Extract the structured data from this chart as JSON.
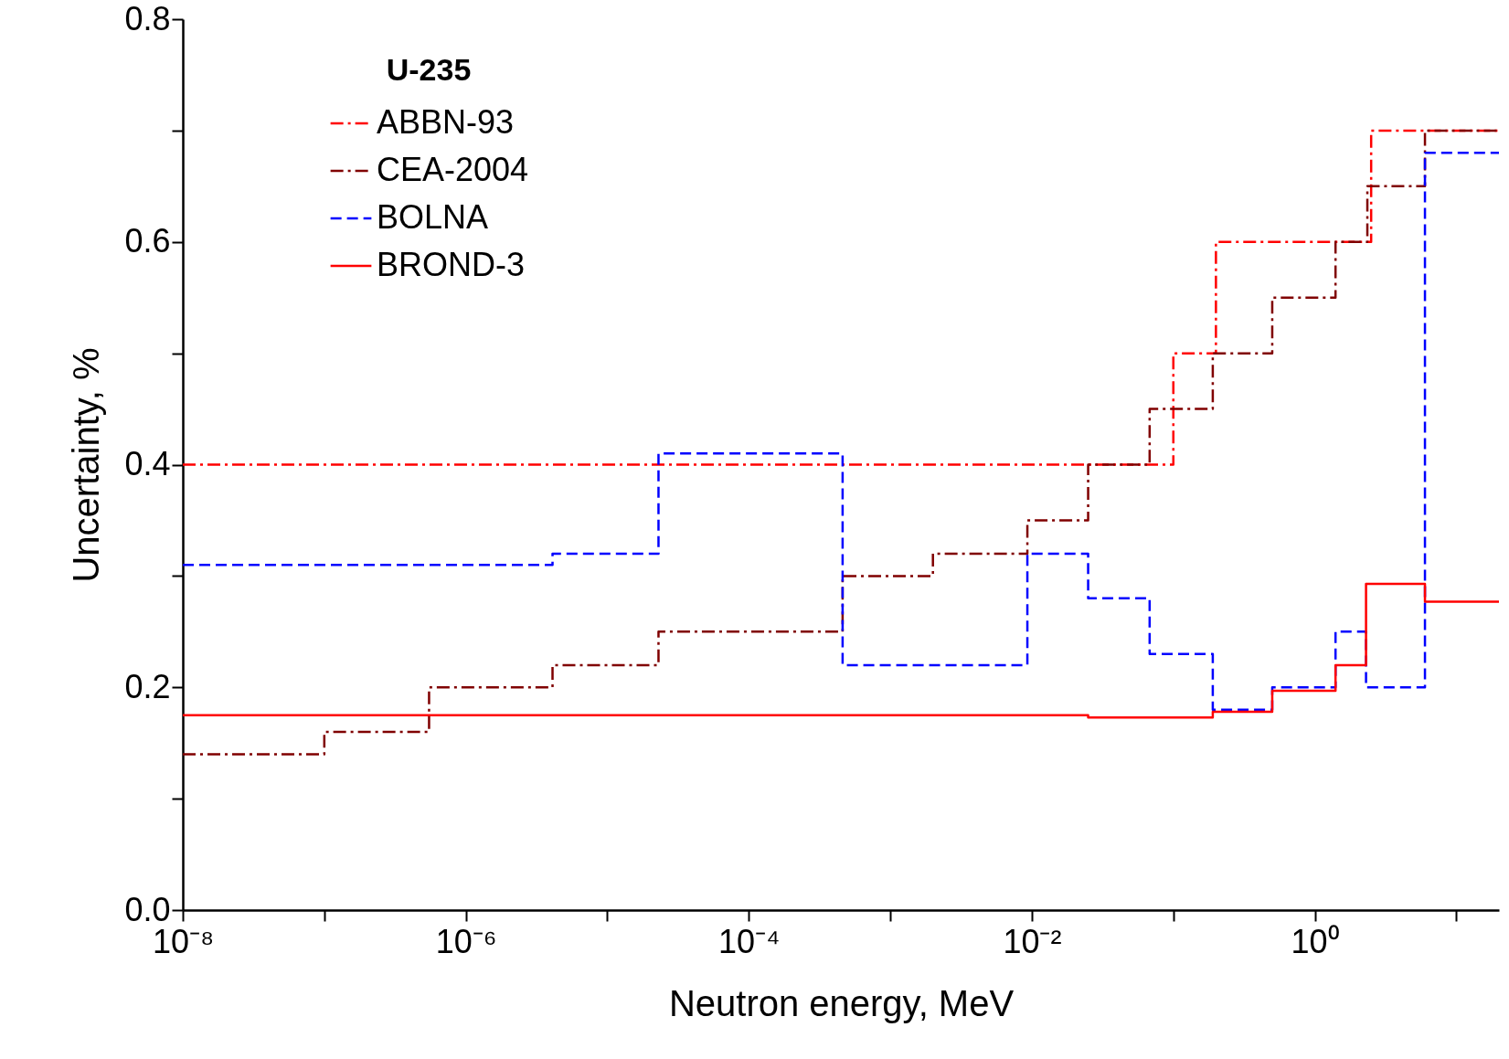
{
  "chart_data": {
    "type": "step",
    "xlabel": "Neutron energy, MeV",
    "ylabel": "Uncertainty, %",
    "legend_title": "U-235",
    "legend": "top left",
    "log": "x",
    "grid": false,
    "xlim": [
      1e-08,
      20
    ],
    "ylim": [
      0,
      0.8
    ],
    "xticks": [
      {
        "value": 1e-08,
        "label": "10⁻⁸"
      },
      {
        "value": 1e-07,
        "label": null
      },
      {
        "value": 1e-06,
        "label": "10⁻⁶"
      },
      {
        "value": 1e-05,
        "label": null
      },
      {
        "value": 0.0001,
        "label": "10⁻⁴"
      },
      {
        "value": 0.001,
        "label": null
      },
      {
        "value": 0.01,
        "label": "10⁻²"
      },
      {
        "value": 0.1,
        "label": null
      },
      {
        "value": 1,
        "label": "10⁰"
      },
      {
        "value": 10,
        "label": null
      }
    ],
    "yticks": [
      {
        "value": 0,
        "label": "0.0"
      },
      {
        "value": 0.1,
        "label": null
      },
      {
        "value": 0.2,
        "label": "0.2"
      },
      {
        "value": 0.3,
        "label": null
      },
      {
        "value": 0.4,
        "label": "0.4"
      },
      {
        "value": 0.5,
        "label": null
      },
      {
        "value": 0.6,
        "label": "0.6"
      },
      {
        "value": 0.7,
        "label": null
      },
      {
        "value": 0.8,
        "label": "0.8"
      }
    ],
    "series": [
      {
        "name": "ABBN-93",
        "color": "#ff0000",
        "line_style": "dashdot",
        "x": [
          1e-08,
          0.1,
          0.2,
          2.5,
          20
        ],
        "values": [
          0.4,
          0.5,
          0.6,
          0.7,
          0.7
        ]
      },
      {
        "name": "CEA-2004",
        "color": "#800000",
        "line_style": "dashdot",
        "x": [
          1e-08,
          1e-07,
          5.5e-07,
          4.1e-06,
          2.3e-05,
          0.00046,
          0.002,
          0.0093,
          0.025,
          0.068,
          0.19,
          0.5,
          1.4,
          2.35,
          6,
          20
        ],
        "values": [
          0.14,
          0.16,
          0.2,
          0.22,
          0.25,
          0.3,
          0.32,
          0.35,
          0.4,
          0.45,
          0.5,
          0.55,
          0.6,
          0.65,
          0.7,
          0.7
        ]
      },
      {
        "name": "BOLNA",
        "color": "#0000ff",
        "line_style": "dashed",
        "x": [
          1e-08,
          4.1e-06,
          2.3e-05,
          0.00046,
          0.002,
          0.0093,
          0.025,
          0.068,
          0.19,
          0.5,
          1.4,
          2.3,
          6,
          20
        ],
        "values": [
          0.31,
          0.32,
          0.41,
          0.22,
          0.22,
          0.32,
          0.28,
          0.23,
          0.18,
          0.2,
          0.25,
          0.2,
          0.68,
          0.68
        ]
      },
      {
        "name": "BROND-3",
        "color": "#ff0000",
        "line_style": "solid",
        "x": [
          1e-08,
          0.025,
          0.19,
          0.5,
          1.4,
          2.3,
          6,
          20
        ],
        "values": [
          0.175,
          0.173,
          0.178,
          0.197,
          0.22,
          0.293,
          0.277,
          0.277
        ]
      }
    ]
  }
}
